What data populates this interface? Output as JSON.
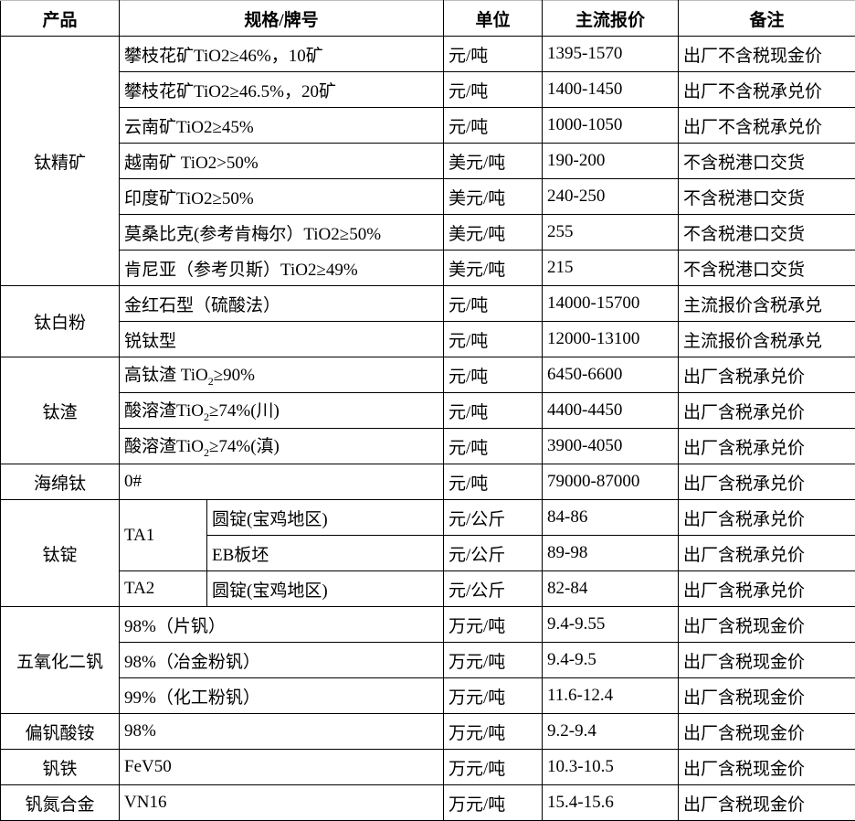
{
  "headers": {
    "product": "产品",
    "spec": "规格/牌号",
    "unit": "单位",
    "price": "主流报价",
    "note": "备注"
  },
  "rows": [
    {
      "product": "钛精矿",
      "spec": "攀枝花矿TiO2≥46%，10矿",
      "unit": "元/吨",
      "price": "1395-1570",
      "note": "出厂不含税现金价"
    },
    {
      "spec": "攀枝花矿TiO2≥46.5%，20矿",
      "unit": "元/吨",
      "price": "1400-1450",
      "note": "出厂不含税承兑价"
    },
    {
      "spec": "云南矿TiO2≥45%",
      "unit": "元/吨",
      "price": "1000-1050",
      "note": "出厂不含税承兑价"
    },
    {
      "spec": "越南矿 TiO2>50%",
      "unit": "美元/吨",
      "price": "190-200",
      "note": "不含税港口交货"
    },
    {
      "spec": "印度矿TiO2≥50%",
      "unit": "美元/吨",
      "price": "240-250",
      "note": "不含税港口交货"
    },
    {
      "spec": "莫桑比克(参考肯梅尔）TiO2≥50%",
      "unit": "美元/吨",
      "price": "255",
      "note": "不含税港口交货"
    },
    {
      "spec": "肯尼亚（参考贝斯）TiO2≥49%",
      "unit": "美元/吨",
      "price": "215",
      "note": "不含税港口交货"
    },
    {
      "product": "钛白粉",
      "spec": "金红石型（硫酸法）",
      "unit": "元/吨",
      "price": "14000-15700",
      "note": "主流报价含税承兑"
    },
    {
      "spec": "锐钛型",
      "unit": "元/吨",
      "price": "12000-13100",
      "note": "主流报价含税承兑"
    },
    {
      "product": "钛渣",
      "spec_pre": "高钛渣 TiO",
      "spec_sub": "2",
      "spec_post": "≥90%",
      "unit": "元/吨",
      "price": "6450-6600",
      "note": "出厂含税承兑价"
    },
    {
      "spec_pre": "酸溶渣TiO",
      "spec_sub": "2",
      "spec_post": "≥74%(川)",
      "unit": "元/吨",
      "price": "4400-4450",
      "note": "出厂含税承兑价"
    },
    {
      "spec_pre": "酸溶渣TiO",
      "spec_sub": "2",
      "spec_post": "≥74%(滇)",
      "unit": "元/吨",
      "price": "3900-4050",
      "note": "出厂含税承兑价"
    },
    {
      "product": "海绵钛",
      "spec": "0#",
      "unit": "元/吨",
      "price": "79000-87000",
      "note": "出厂含税承兑价"
    },
    {
      "product": "钛锭",
      "grade": "TA1",
      "spec": "圆锭(宝鸡地区)",
      "unit": "元/公斤",
      "price": "84-86",
      "note": "出厂含税承兑价"
    },
    {
      "spec": "EB板坯",
      "unit": "元/公斤",
      "price": "89-98",
      "note": "出厂含税承兑价"
    },
    {
      "grade": "TA2",
      "spec": "圆锭(宝鸡地区)",
      "unit": "元/公斤",
      "price": "82-84",
      "note": "出厂含税承兑价"
    },
    {
      "product": "五氧化二钒",
      "spec": "98%（片钒）",
      "unit": "万元/吨",
      "price": "9.4-9.55",
      "note": "出厂含税现金价"
    },
    {
      "spec": "98%（冶金粉钒）",
      "unit": "万元/吨",
      "price": "9.4-9.5",
      "note": "出厂含税现金价"
    },
    {
      "spec": "99%（化工粉钒）",
      "unit": "万元/吨",
      "price": "11.6-12.4",
      "note": "出厂含税现金价"
    },
    {
      "product": "偏钒酸铵",
      "spec": "98%",
      "unit": "万元/吨",
      "price": "9.2-9.4",
      "note": "出厂含税现金价"
    },
    {
      "product": "钒铁",
      "spec": "FeV50",
      "unit": "万元/吨",
      "price": "10.3-10.5",
      "note": "出厂含税现金价"
    },
    {
      "product": "钒氮合金",
      "spec": "VN16",
      "unit": "万元/吨",
      "price": "15.4-15.6",
      "note": "出厂含税现金价"
    }
  ]
}
